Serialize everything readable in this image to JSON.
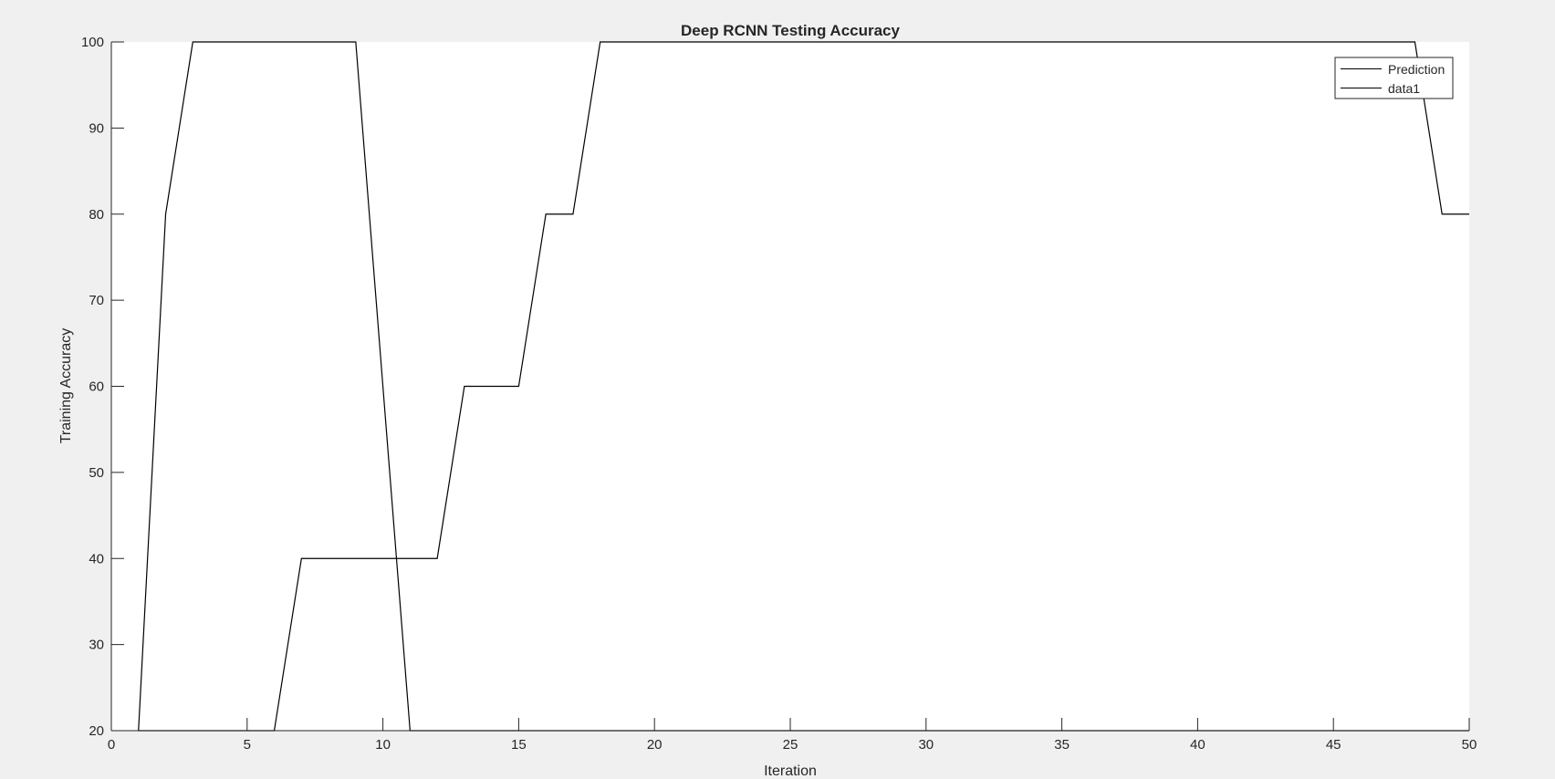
{
  "figure": {
    "background": "#f0f0f0",
    "axes_background": "#ffffff",
    "line_color": "#000000"
  },
  "chart_data": {
    "type": "line",
    "title": "Deep RCNN Testing Accuracy",
    "xlabel": "Iteration",
    "ylabel": "Training Accuracy",
    "xlim": [
      0,
      50
    ],
    "ylim": [
      20,
      100
    ],
    "xticks": [
      0,
      5,
      10,
      15,
      20,
      25,
      30,
      35,
      40,
      45,
      50
    ],
    "yticks": [
      20,
      30,
      40,
      50,
      60,
      70,
      80,
      90,
      100
    ],
    "grid": false,
    "legend_position": "top-right",
    "series": [
      {
        "name": "Prediction",
        "x": [
          1,
          2,
          3,
          4,
          5,
          6,
          7,
          8,
          9,
          10,
          11,
          12,
          13,
          14,
          15,
          16,
          17,
          18,
          19,
          20,
          21,
          22,
          23,
          24,
          25,
          26,
          27,
          28,
          29,
          30,
          31,
          32,
          33,
          34,
          35,
          36,
          37,
          38,
          39,
          40,
          41,
          42,
          43,
          44,
          45,
          46,
          47,
          48,
          49,
          50
        ],
        "y": [
          20,
          80,
          100,
          100,
          100,
          100,
          100,
          100,
          100,
          60,
          20,
          20,
          20,
          20,
          20,
          20,
          20,
          20,
          20,
          20,
          20,
          20,
          20,
          20,
          20,
          20,
          20,
          20,
          20,
          20,
          20,
          20,
          20,
          20,
          20,
          20,
          20,
          20,
          20,
          20,
          20,
          20,
          20,
          20,
          20,
          20,
          20,
          20,
          20,
          20
        ]
      },
      {
        "name": "data1",
        "x": [
          1,
          2,
          3,
          4,
          5,
          6,
          7,
          8,
          9,
          10,
          11,
          12,
          13,
          14,
          15,
          16,
          17,
          18,
          19,
          20,
          21,
          22,
          23,
          24,
          25,
          26,
          27,
          28,
          29,
          30,
          31,
          32,
          33,
          34,
          35,
          36,
          37,
          38,
          39,
          40,
          41,
          42,
          43,
          44,
          45,
          46,
          47,
          48,
          49,
          50
        ],
        "y": [
          20,
          20,
          20,
          20,
          20,
          20,
          40,
          40,
          40,
          40,
          40,
          40,
          60,
          60,
          60,
          80,
          80,
          100,
          100,
          100,
          100,
          100,
          100,
          100,
          100,
          100,
          100,
          100,
          100,
          100,
          100,
          100,
          100,
          100,
          100,
          100,
          100,
          100,
          100,
          100,
          100,
          100,
          100,
          100,
          100,
          100,
          100,
          100,
          80,
          80
        ]
      }
    ]
  }
}
